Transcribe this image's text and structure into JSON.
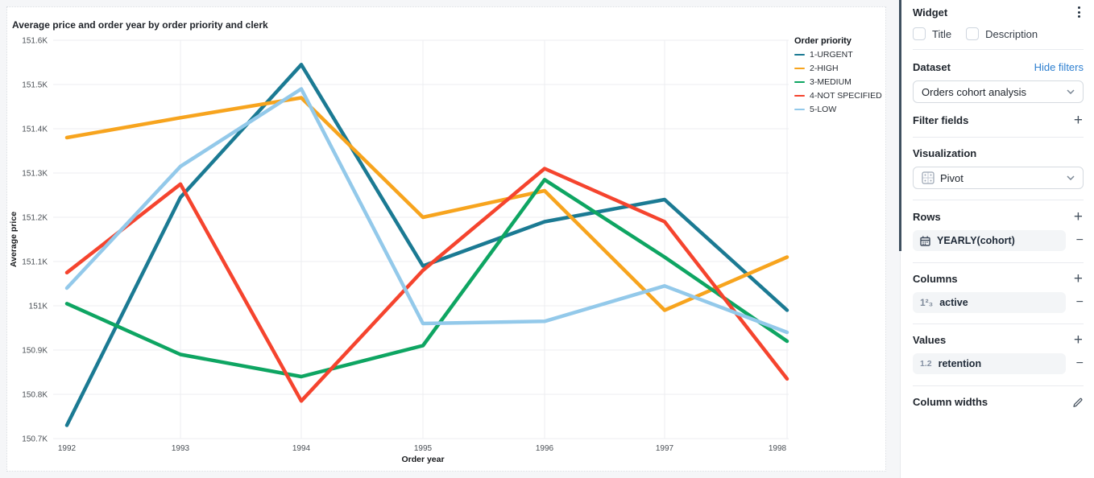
{
  "chart_data": {
    "type": "line",
    "title": "Average price and order year by order priority and clerk",
    "xlabel": "Order year",
    "ylabel": "Average price",
    "x": [
      "1992",
      "1993",
      "1994",
      "1995",
      "1996",
      "1997",
      "1998"
    ],
    "y_ticks": [
      "151.6K",
      "151.5K",
      "151.4K",
      "151.3K",
      "151.2K",
      "151.1K",
      "151K",
      "150.9K",
      "150.8K",
      "150.7K"
    ],
    "ylim": [
      150700,
      151600
    ],
    "grid": true,
    "legend_position": "top-right",
    "legend_title": "Order priority",
    "series": [
      {
        "name": "1-URGENT",
        "color": "#1B7A93",
        "values": [
          150730,
          151245,
          151545,
          151090,
          151190,
          151240,
          150990
        ]
      },
      {
        "name": "2-HIGH",
        "color": "#F7A41E",
        "values": [
          151380,
          151425,
          151470,
          151200,
          151260,
          150990,
          151110
        ]
      },
      {
        "name": "3-MEDIUM",
        "color": "#0EA562",
        "values": [
          151005,
          150890,
          150840,
          150910,
          151285,
          151110,
          150920
        ]
      },
      {
        "name": "4-NOT SPECIFIED",
        "color": "#F5442E",
        "values": [
          151075,
          151275,
          150785,
          151080,
          151310,
          151190,
          150835
        ]
      },
      {
        "name": "5-LOW",
        "color": "#93C9EA",
        "values": [
          151040,
          151315,
          151490,
          150960,
          150965,
          151045,
          150940
        ]
      }
    ]
  },
  "sidebar": {
    "widget": {
      "title": "Widget",
      "menu_icon": "kebab-menu-icon"
    },
    "checkboxes": [
      {
        "label": "Title",
        "checked": false
      },
      {
        "label": "Description",
        "checked": false
      }
    ],
    "dataset": {
      "label": "Dataset",
      "link": "Hide filters",
      "value": "Orders cohort analysis"
    },
    "filter_fields": {
      "label": "Filter fields"
    },
    "visualization": {
      "label": "Visualization",
      "value": "Pivot",
      "icon": "pivot-table-icon"
    },
    "rows": {
      "label": "Rows",
      "items": [
        {
          "icon": "calendar-icon",
          "label": "YEARLY(cohort)"
        }
      ]
    },
    "columns": {
      "label": "Columns",
      "items": [
        {
          "icon": "integer-field-icon",
          "icon_text": "1²₃",
          "label": "active"
        }
      ]
    },
    "values": {
      "label": "Values",
      "items": [
        {
          "icon": "decimal-field-icon",
          "icon_text": "1.2",
          "label": "retention"
        }
      ]
    },
    "column_widths": {
      "label": "Column widths",
      "icon": "pencil-icon"
    }
  },
  "colors": {
    "accent_link": "#2D7FD0",
    "scrollbar_thumb": "#3E4F5F",
    "chip_background": "#F3F5F7"
  }
}
